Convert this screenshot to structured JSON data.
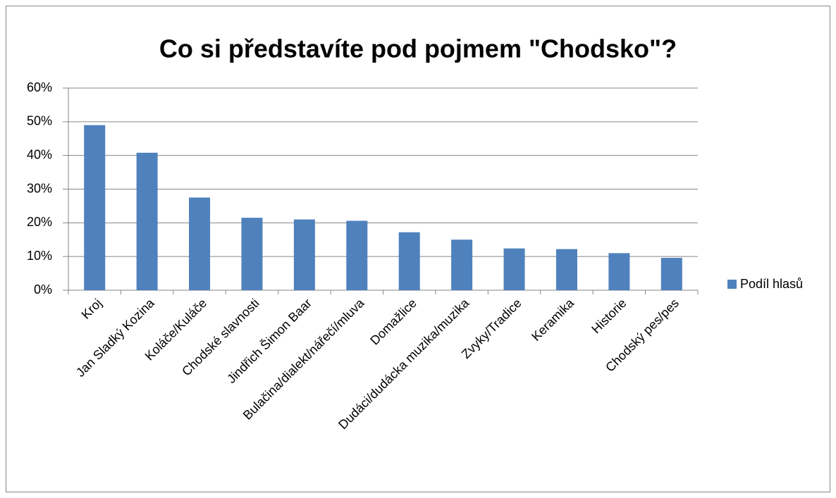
{
  "chart_data": {
    "type": "bar",
    "title": "Co si představíte pod pojmem \"Chodsko\"?",
    "categories": [
      "Kroj",
      "Jan Sladký Kozina",
      "Koláče/Kuláče",
      "Chodské slavnosti",
      "Jindřich Šimon Baar",
      "Bulačina/dialekt/nářečí/mluva",
      "Domažlice",
      "Dudáci/dudácka muzika/muzika",
      "Zvyky/Tradice",
      "Keramika",
      "Historie",
      "Chodský pes/pes"
    ],
    "series": [
      {
        "name": "Podíl hlasů",
        "color": "#4f81bd",
        "values": [
          49,
          40.8,
          27.5,
          21.5,
          21,
          20.6,
          17.2,
          15,
          12.4,
          12.2,
          11,
          9.6
        ]
      }
    ],
    "ylim": [
      0,
      60
    ],
    "yticks": [
      {
        "value": 0,
        "label": "0%"
      },
      {
        "value": 10,
        "label": "10%"
      },
      {
        "value": 20,
        "label": "20%"
      },
      {
        "value": 30,
        "label": "30%"
      },
      {
        "value": 40,
        "label": "40%"
      },
      {
        "value": 50,
        "label": "50%"
      },
      {
        "value": 60,
        "label": "60%"
      }
    ],
    "grid": true,
    "legend": "right"
  }
}
